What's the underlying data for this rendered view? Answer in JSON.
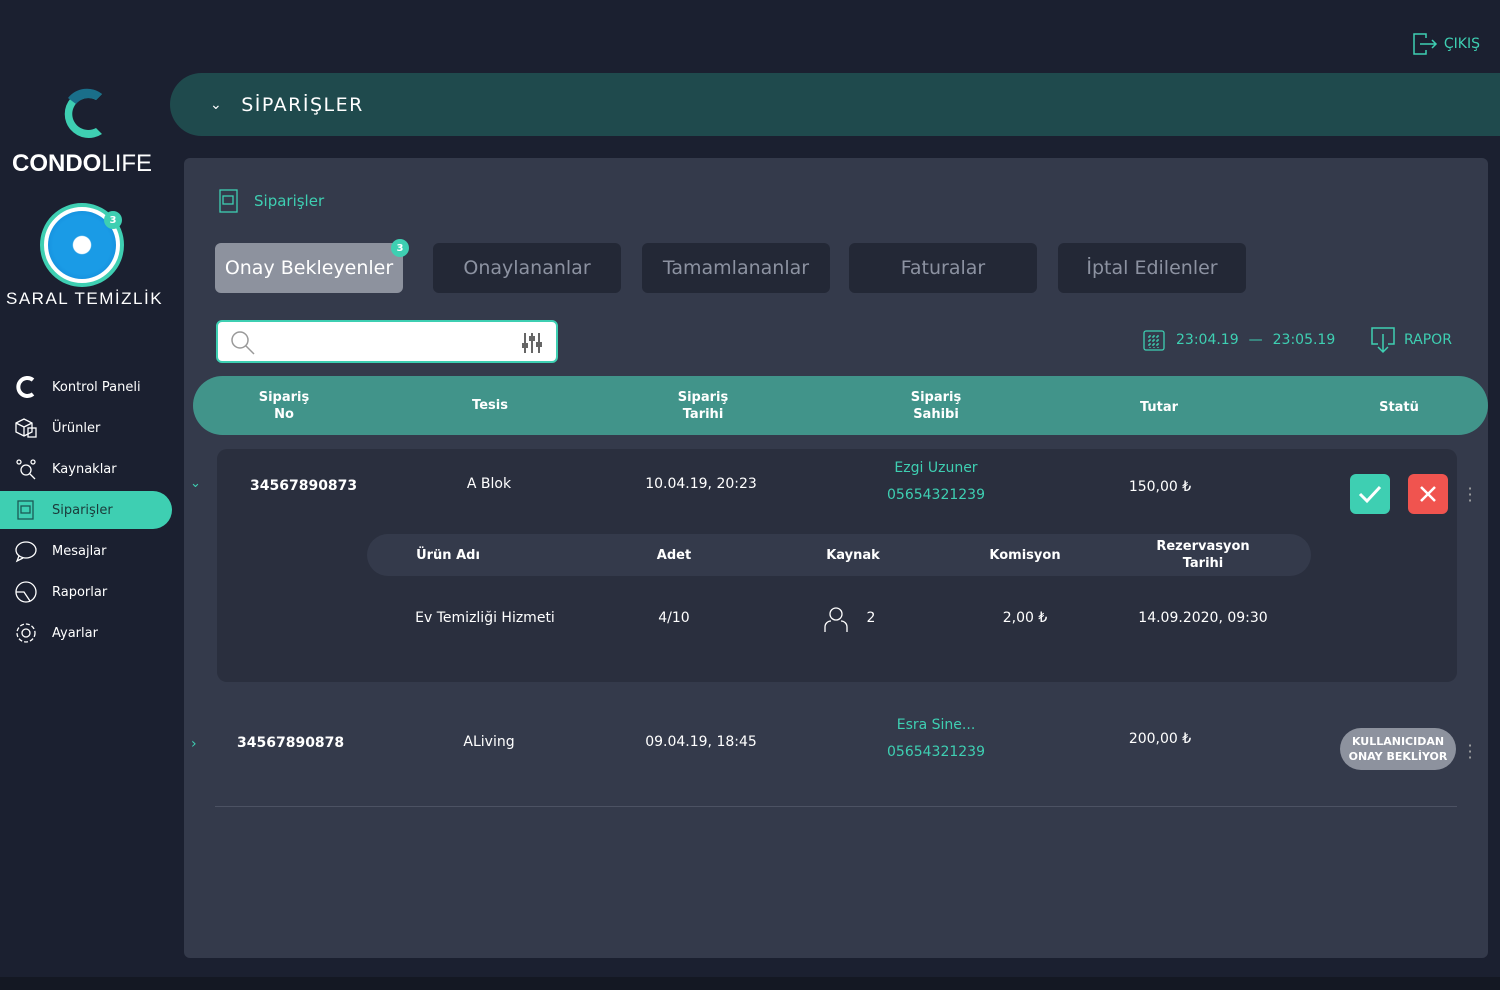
{
  "brand": {
    "name_bold": "CONDO",
    "name_light": "LIFE"
  },
  "company": {
    "name": "SARAL TEMİZLİK",
    "badge": "3"
  },
  "logout": "ÇIKIŞ",
  "nav": [
    {
      "label": "Kontrol Paneli",
      "icon": "condo-c-icon"
    },
    {
      "label": "Ürünler",
      "icon": "products-icon"
    },
    {
      "label": "Kaynaklar",
      "icon": "resources-icon"
    },
    {
      "label": "Siparişler",
      "icon": "orders-icon",
      "active": true
    },
    {
      "label": "Mesajlar",
      "icon": "message-icon"
    },
    {
      "label": "Raporlar",
      "icon": "report-icon"
    },
    {
      "label": "Ayarlar",
      "icon": "gear-icon"
    }
  ],
  "topbar": {
    "title": "SİPARİŞLER"
  },
  "panel": {
    "title": "Siparişler"
  },
  "tabs": [
    {
      "label": "Onay Bekleyenler",
      "badge": "3",
      "active": true
    },
    {
      "label": "Onaylananlar"
    },
    {
      "label": "Tamamlananlar"
    },
    {
      "label": "Faturalar"
    },
    {
      "label": "İptal Edilenler"
    }
  ],
  "search": {
    "placeholder": "",
    "value": ""
  },
  "date_range": {
    "start": "23:04.19",
    "sep": "—",
    "end": "23:05.19"
  },
  "report_label": "RAPOR",
  "columns": [
    "Sipariş\nNo",
    "Tesis",
    "Sipariş\nTarihi",
    "Sipariş\nSahibi",
    "Tutar",
    "Statü"
  ],
  "orders": [
    {
      "no": "34567890873",
      "facility": "A Blok",
      "date": "10.04.19, 20:23",
      "owner": "Ezgi Uzuner",
      "phone": "05654321239",
      "amount": "150,00 ₺",
      "expanded": true
    },
    {
      "no": "34567890878",
      "facility": "ALiving",
      "date": "09.04.19, 18:45",
      "owner": "Esra Sine...",
      "phone": "05654321239",
      "amount": "200,00 ₺",
      "status": "KULLANICIDAN ONAY BEKLİYOR"
    }
  ],
  "sub_columns": [
    "Ürün Adı",
    "Adet",
    "Kaynak",
    "Komisyon",
    "Rezervasyon Tarihi"
  ],
  "sub_row": {
    "product": "Ev Temizliği Hizmeti",
    "qty": "4/10",
    "resource": "2",
    "commission": "2,00 ₺",
    "reservation": "14.09.2020, 09:30"
  },
  "colors": {
    "accent": "#3ecfb2",
    "danger": "#f0544f",
    "header": "#41948a",
    "topbar": "#1f4a4d"
  }
}
